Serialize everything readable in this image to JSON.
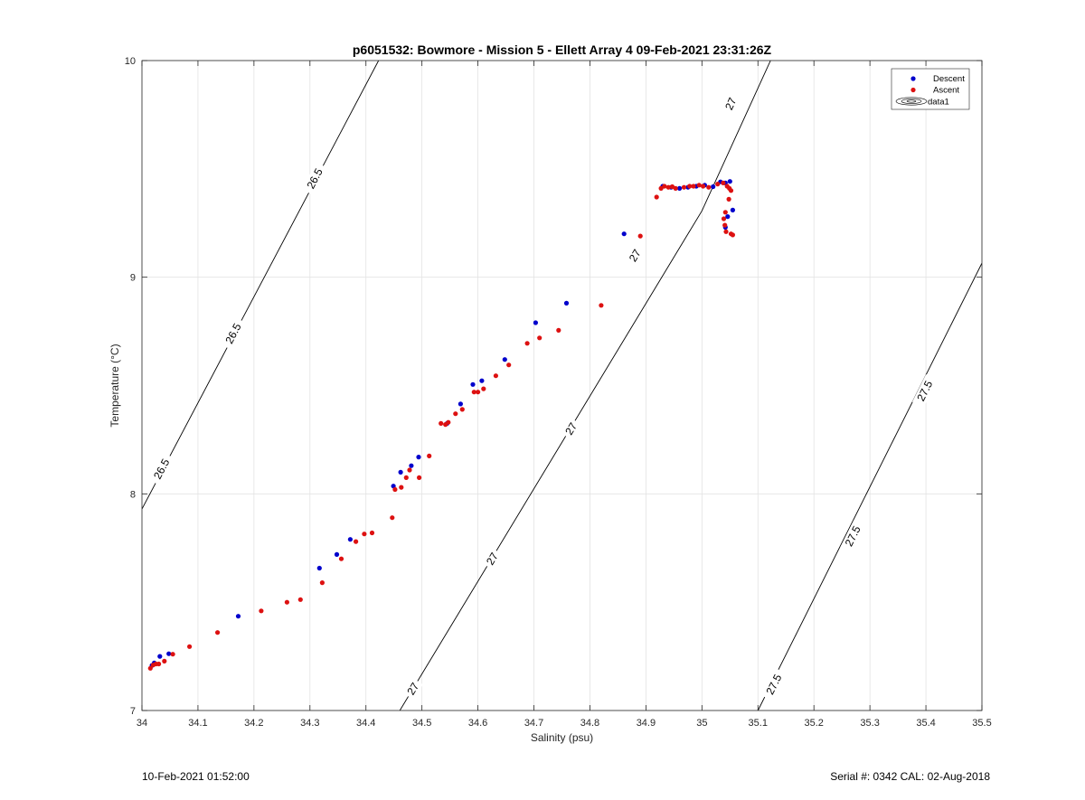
{
  "chart_data": {
    "type": "scatter",
    "title": "p6051532: Bowmore - Mission 5 - Ellett Array 4 09-Feb-2021 23:31:26Z",
    "xlabel": "Salinity (psu)",
    "ylabel": "Temperature (°C)",
    "xlim": [
      34,
      35.5
    ],
    "ylim": [
      7,
      10
    ],
    "xticks": [
      "34",
      "34.1",
      "34.2",
      "34.3",
      "34.4",
      "34.5",
      "34.6",
      "34.7",
      "34.8",
      "34.9",
      "35",
      "35.1",
      "35.2",
      "35.3",
      "35.4",
      "35.5"
    ],
    "yticks": [
      "7",
      "8",
      "9",
      "10"
    ],
    "grid": true,
    "legend_position": "top-right",
    "legend": [
      "Descent",
      "Ascent",
      "data1"
    ],
    "colors": {
      "descent": "#0000cc",
      "ascent": "#dd1111",
      "contour": "#000000",
      "grid": "#e3e3e3"
    },
    "series": [
      {
        "name": "Descent",
        "color": "#0000cc",
        "x": [
          34.018,
          34.022,
          34.032,
          34.048,
          34.172,
          34.317,
          34.348,
          34.372,
          34.449,
          34.462,
          34.481,
          34.494,
          34.545,
          34.569,
          34.591,
          34.607,
          34.648,
          34.703,
          34.758,
          34.861,
          34.93,
          34.945,
          34.96,
          34.975,
          34.99,
          35.005,
          35.02,
          35.033,
          35.042,
          35.05,
          35.055,
          35.046,
          35.042
        ],
        "y": [
          7.208,
          7.22,
          7.25,
          7.262,
          7.435,
          7.657,
          7.72,
          7.79,
          8.036,
          8.1,
          8.13,
          8.17,
          8.325,
          8.415,
          8.505,
          8.522,
          8.62,
          8.79,
          8.88,
          9.2,
          9.42,
          9.415,
          9.41,
          9.415,
          9.42,
          9.425,
          9.418,
          9.44,
          9.435,
          9.442,
          9.31,
          9.28,
          9.23
        ]
      },
      {
        "name": "Ascent",
        "color": "#dd1111",
        "x": [
          34.015,
          34.02,
          34.025,
          34.03,
          34.04,
          34.055,
          34.085,
          34.135,
          34.213,
          34.259,
          34.283,
          34.322,
          34.356,
          34.382,
          34.397,
          34.411,
          34.447,
          34.452,
          34.463,
          34.472,
          34.478,
          34.495,
          34.513,
          34.534,
          34.542,
          34.547,
          34.56,
          34.572,
          34.593,
          34.6,
          34.61,
          34.632,
          34.655,
          34.688,
          34.71,
          34.744,
          34.82,
          34.89,
          34.919,
          34.927,
          34.933,
          34.94,
          34.947,
          34.953,
          34.968,
          34.978,
          34.985,
          34.995,
          35.002,
          35.012,
          35.028,
          35.038,
          35.045,
          35.049,
          35.052,
          35.048,
          35.042,
          35.039,
          35.041,
          35.043,
          35.052,
          35.055
        ],
        "y": [
          7.195,
          7.21,
          7.215,
          7.215,
          7.228,
          7.26,
          7.295,
          7.36,
          7.46,
          7.5,
          7.512,
          7.59,
          7.7,
          7.78,
          7.815,
          7.82,
          7.89,
          8.02,
          8.03,
          8.075,
          8.11,
          8.075,
          8.175,
          8.325,
          8.32,
          8.33,
          8.37,
          8.39,
          8.47,
          8.47,
          8.485,
          8.545,
          8.595,
          8.695,
          8.72,
          8.755,
          8.87,
          9.19,
          9.37,
          9.41,
          9.42,
          9.415,
          9.418,
          9.41,
          9.415,
          9.42,
          9.42,
          9.425,
          9.42,
          9.415,
          9.43,
          9.435,
          9.42,
          9.41,
          9.4,
          9.36,
          9.3,
          9.27,
          9.24,
          9.21,
          9.2,
          9.195
        ]
      }
    ],
    "contours": [
      {
        "level": "26.5",
        "label": "26.5",
        "points": [
          [
            34.0,
            7.93
          ],
          [
            34.4225,
            10.0
          ]
        ],
        "label_positions": [
          [
            34.035,
            8.115
          ],
          [
            34.163,
            8.74
          ],
          [
            34.3085,
            9.455
          ]
        ]
      },
      {
        "level": "27",
        "label": "27",
        "points": [
          [
            34.4605,
            7.0
          ],
          [
            35.0,
            9.306
          ],
          [
            35.1225,
            10.0
          ]
        ],
        "label_positions": [
          [
            34.484,
            7.1
          ],
          [
            34.6255,
            7.7
          ],
          [
            34.7665,
            8.3
          ],
          [
            34.8805,
            9.1
          ],
          [
            35.0515,
            9.8
          ]
        ]
      },
      {
        "level": "27.5",
        "label": "27.5",
        "points": [
          [
            35.1,
            7.0
          ],
          [
            35.5,
            9.065
          ]
        ],
        "label_positions": [
          [
            35.1285,
            7.12
          ],
          [
            35.2695,
            7.805
          ],
          [
            35.398,
            8.475
          ]
        ]
      }
    ]
  },
  "footer": {
    "timestamp": "10-Feb-2021 01:52:00",
    "serial_info": "Serial #: 0342  CAL: 02-Aug-2018"
  }
}
